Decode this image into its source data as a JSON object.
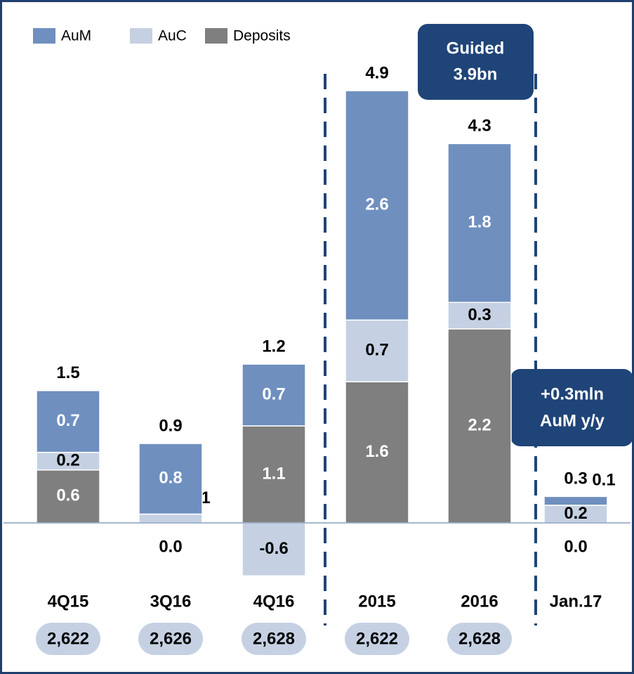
{
  "chart_data": {
    "type": "stacked_bar",
    "categories": [
      "4Q15",
      "3Q16",
      "4Q16",
      "2015",
      "2016",
      "Jan.17"
    ],
    "series": [
      {
        "name": "Deposits",
        "color": "#7f7f7f",
        "values": [
          0.6,
          0.0,
          1.1,
          1.6,
          2.2,
          0.0
        ],
        "value_labels": [
          "0.6",
          "0.0",
          "1.1",
          "1.6",
          "2.2",
          "0.0"
        ]
      },
      {
        "name": "AuC",
        "color": "#c5d1e3",
        "values": [
          0.2,
          0.1,
          -0.6,
          0.7,
          0.3,
          0.2
        ],
        "value_labels": [
          "0.2",
          "0.1",
          "-0.6",
          "0.7",
          "0.3",
          "0.2"
        ]
      },
      {
        "name": "AuM",
        "color": "#6f8fbf",
        "values": [
          0.7,
          0.8,
          0.7,
          2.6,
          1.8,
          0.1
        ],
        "value_labels": [
          "0.7",
          "0.8",
          "0.7",
          "2.6",
          "1.8",
          "0.1"
        ]
      }
    ],
    "totals": [
      1.5,
      0.9,
      1.2,
      4.9,
      4.3,
      0.3
    ],
    "bottom_labels": [
      "2,622",
      "2,626",
      "2,628",
      "2,622",
      "2,628",
      null
    ],
    "annotations": [
      [
        "Guided",
        "3.9bn"
      ],
      [
        "+0.3mln",
        "AuM y/y"
      ]
    ],
    "ylim": [
      -1,
      5.2
    ]
  }
}
